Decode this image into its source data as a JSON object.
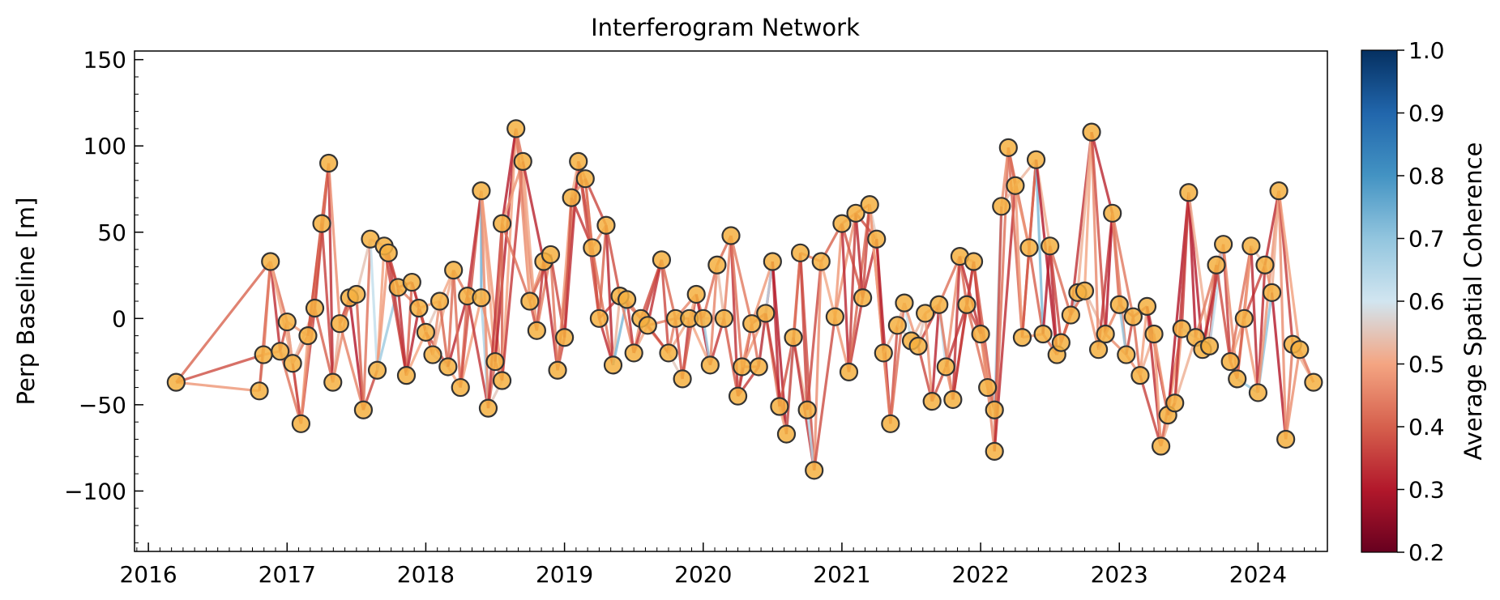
{
  "chart_data": {
    "type": "scatter",
    "title": "Interferogram Network",
    "xlabel": "",
    "ylabel": "Perp Baseline [m]",
    "xlim": [
      2015.9,
      2024.5
    ],
    "ylim": [
      -135,
      155
    ],
    "x_ticks": [
      2016,
      2017,
      2018,
      2019,
      2020,
      2021,
      2022,
      2023,
      2024
    ],
    "y_ticks": [
      -100,
      -50,
      0,
      50,
      100,
      150
    ],
    "y_tick_labels": [
      "−100",
      "−50",
      "0",
      "50",
      "100",
      "150"
    ],
    "grid": false,
    "point_color": "#f5b041",
    "point_edge_color": "#333333",
    "colorbar": {
      "label": "Average Spatial Coherence",
      "range": [
        0.2,
        1.0
      ],
      "ticks": [
        "0.2",
        "0.3",
        "0.4",
        "0.5",
        "0.6",
        "0.7",
        "0.8",
        "0.9",
        "1.0"
      ],
      "colormap": "RdBu",
      "colormap_stops": [
        "#67001f",
        "#b2182b",
        "#d6604d",
        "#f4a582",
        "#d1e5f0",
        "#92c5de",
        "#4393c3",
        "#2166ac",
        "#053061"
      ],
      "cutoff": 0.7
    },
    "acquisitions": [
      [
        2016.2,
        -37
      ],
      [
        2016.8,
        -42
      ],
      [
        2016.83,
        -21
      ],
      [
        2016.88,
        33
      ],
      [
        2016.95,
        -19
      ],
      [
        2017.0,
        -2
      ],
      [
        2017.04,
        -26
      ],
      [
        2017.1,
        -61
      ],
      [
        2017.15,
        -10
      ],
      [
        2017.2,
        6
      ],
      [
        2017.25,
        55
      ],
      [
        2017.3,
        90
      ],
      [
        2017.33,
        -37
      ],
      [
        2017.38,
        -3
      ],
      [
        2017.45,
        12
      ],
      [
        2017.5,
        14
      ],
      [
        2017.55,
        -53
      ],
      [
        2017.6,
        46
      ],
      [
        2017.65,
        -30
      ],
      [
        2017.7,
        42
      ],
      [
        2017.73,
        38
      ],
      [
        2017.8,
        18
      ],
      [
        2017.86,
        -33
      ],
      [
        2017.9,
        21
      ],
      [
        2017.95,
        6
      ],
      [
        2018.0,
        -8
      ],
      [
        2018.05,
        -21
      ],
      [
        2018.1,
        10
      ],
      [
        2018.16,
        -28
      ],
      [
        2018.2,
        28
      ],
      [
        2018.25,
        -40
      ],
      [
        2018.3,
        13
      ],
      [
        2018.4,
        12
      ],
      [
        2018.45,
        -52
      ],
      [
        2018.5,
        -25
      ],
      [
        2018.55,
        -36
      ],
      [
        2018.4,
        74
      ],
      [
        2018.55,
        55
      ],
      [
        2018.65,
        110
      ],
      [
        2018.7,
        91
      ],
      [
        2018.75,
        10
      ],
      [
        2018.8,
        -7
      ],
      [
        2018.85,
        33
      ],
      [
        2018.9,
        37
      ],
      [
        2018.95,
        -30
      ],
      [
        2019.0,
        -11
      ],
      [
        2019.05,
        70
      ],
      [
        2019.1,
        91
      ],
      [
        2019.15,
        81
      ],
      [
        2019.2,
        41
      ],
      [
        2019.25,
        0
      ],
      [
        2019.3,
        54
      ],
      [
        2019.35,
        -27
      ],
      [
        2019.4,
        13
      ],
      [
        2019.45,
        11
      ],
      [
        2019.5,
        -20
      ],
      [
        2019.55,
        0
      ],
      [
        2019.6,
        -4
      ],
      [
        2019.7,
        34
      ],
      [
        2019.75,
        -20
      ],
      [
        2019.8,
        0
      ],
      [
        2019.85,
        -35
      ],
      [
        2019.9,
        0
      ],
      [
        2019.95,
        14
      ],
      [
        2020.0,
        0
      ],
      [
        2020.05,
        -27
      ],
      [
        2020.1,
        31
      ],
      [
        2020.15,
        0
      ],
      [
        2020.2,
        48
      ],
      [
        2020.25,
        -45
      ],
      [
        2020.28,
        -28
      ],
      [
        2020.35,
        -3
      ],
      [
        2020.4,
        -28
      ],
      [
        2020.45,
        3
      ],
      [
        2020.5,
        33
      ],
      [
        2020.55,
        -51
      ],
      [
        2020.6,
        -67
      ],
      [
        2020.65,
        -11
      ],
      [
        2020.7,
        38
      ],
      [
        2020.75,
        -53
      ],
      [
        2020.8,
        -88
      ],
      [
        2020.85,
        33
      ],
      [
        2020.95,
        1
      ],
      [
        2021.0,
        55
      ],
      [
        2021.05,
        -31
      ],
      [
        2021.1,
        61
      ],
      [
        2021.15,
        12
      ],
      [
        2021.2,
        66
      ],
      [
        2021.25,
        46
      ],
      [
        2021.3,
        -20
      ],
      [
        2021.35,
        -61
      ],
      [
        2021.4,
        -4
      ],
      [
        2021.45,
        9
      ],
      [
        2021.5,
        -13
      ],
      [
        2021.55,
        -16
      ],
      [
        2021.6,
        3
      ],
      [
        2021.65,
        -48
      ],
      [
        2021.7,
        8
      ],
      [
        2021.75,
        -28
      ],
      [
        2021.8,
        -47
      ],
      [
        2021.85,
        36
      ],
      [
        2021.9,
        8
      ],
      [
        2021.95,
        33
      ],
      [
        2022.0,
        -9
      ],
      [
        2022.05,
        -40
      ],
      [
        2022.1,
        -53
      ],
      [
        2022.1,
        -77
      ],
      [
        2022.15,
        65
      ],
      [
        2022.2,
        99
      ],
      [
        2022.25,
        77
      ],
      [
        2022.3,
        -11
      ],
      [
        2022.35,
        41
      ],
      [
        2022.4,
        92
      ],
      [
        2022.45,
        -9
      ],
      [
        2022.5,
        42
      ],
      [
        2022.55,
        -21
      ],
      [
        2022.58,
        -14
      ],
      [
        2022.65,
        2
      ],
      [
        2022.7,
        15
      ],
      [
        2022.75,
        16
      ],
      [
        2022.8,
        108
      ],
      [
        2022.85,
        -18
      ],
      [
        2022.9,
        -9
      ],
      [
        2022.95,
        61
      ],
      [
        2023.0,
        8
      ],
      [
        2023.05,
        -21
      ],
      [
        2023.1,
        1
      ],
      [
        2023.15,
        -33
      ],
      [
        2023.2,
        7
      ],
      [
        2023.25,
        -9
      ],
      [
        2023.3,
        -74
      ],
      [
        2023.35,
        -56
      ],
      [
        2023.4,
        -49
      ],
      [
        2023.45,
        -6
      ],
      [
        2023.5,
        73
      ],
      [
        2023.55,
        -11
      ],
      [
        2023.6,
        -18
      ],
      [
        2023.65,
        -16
      ],
      [
        2023.7,
        31
      ],
      [
        2023.75,
        43
      ],
      [
        2023.8,
        -25
      ],
      [
        2023.85,
        -35
      ],
      [
        2023.9,
        0
      ],
      [
        2023.95,
        42
      ],
      [
        2024.0,
        -43
      ],
      [
        2024.05,
        31
      ],
      [
        2024.1,
        15
      ],
      [
        2024.15,
        74
      ],
      [
        2024.2,
        -70
      ],
      [
        2024.25,
        -15
      ],
      [
        2024.3,
        -18
      ],
      [
        2024.4,
        -37
      ]
    ]
  }
}
